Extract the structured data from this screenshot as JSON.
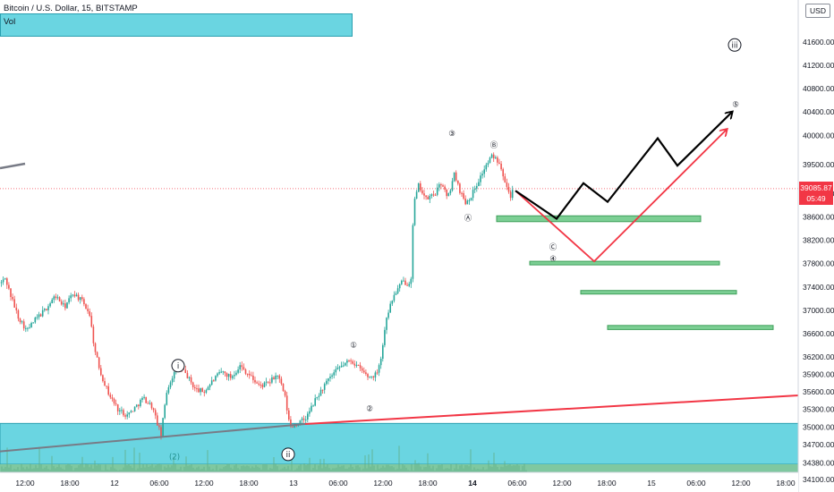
{
  "header": {
    "title": "Bitcoin / U.S. Dollar, 15, BITSTAMP",
    "vol_label": "Vol",
    "currency": "USD"
  },
  "price_tag": {
    "price": "39085.87",
    "countdown": "05:49"
  },
  "colors": {
    "candle_up": "#26a69a",
    "candle_down": "#ef5350",
    "zone": "#6ad5e1",
    "volume_area": "#7fc8a0",
    "target_box": "#7ccf94",
    "red_projection": "#f23645",
    "black_projection": "#000000",
    "support_line_gray": "#787b86"
  },
  "chart_data": {
    "type": "candlestick",
    "symbol": "Bitcoin / U.S. Dollar",
    "interval": "15",
    "exchange": "BITSTAMP",
    "y_axis": {
      "ticks": [
        41600,
        41200,
        40800,
        40400,
        40000,
        39500,
        39000,
        38600,
        38200,
        37800,
        37400,
        37000,
        36600,
        36200,
        35900,
        35600,
        35300,
        35000,
        34700,
        34380,
        34100
      ],
      "ylim": [
        33950,
        41800
      ]
    },
    "x_axis": {
      "ticks": [
        "12:00",
        "18:00",
        "12",
        "06:00",
        "12:00",
        "18:00",
        "13",
        "06:00",
        "12:00",
        "18:00",
        "14",
        "06:00",
        "12:00",
        "18:00",
        "15",
        "06:00",
        "12:00",
        "18:00"
      ],
      "bold_ticks": [
        "14"
      ]
    },
    "last_price": 39085.87,
    "price_path": [
      [
        0,
        37450
      ],
      [
        6,
        37550
      ],
      [
        12,
        37250
      ],
      [
        20,
        36900
      ],
      [
        30,
        36650
      ],
      [
        40,
        36850
      ],
      [
        50,
        37000
      ],
      [
        62,
        37250
      ],
      [
        72,
        37050
      ],
      [
        82,
        37300
      ],
      [
        92,
        37150
      ],
      [
        100,
        36950
      ],
      [
        106,
        36300
      ],
      [
        113,
        35900
      ],
      [
        122,
        35550
      ],
      [
        132,
        35300
      ],
      [
        142,
        35200
      ],
      [
        152,
        35350
      ],
      [
        160,
        35500
      ],
      [
        170,
        35350
      ],
      [
        180,
        34850
      ],
      [
        186,
        35600
      ],
      [
        192,
        35850
      ],
      [
        200,
        36050
      ],
      [
        208,
        35900
      ],
      [
        218,
        35650
      ],
      [
        228,
        35600
      ],
      [
        238,
        35800
      ],
      [
        248,
        35950
      ],
      [
        258,
        35850
      ],
      [
        268,
        36050
      ],
      [
        278,
        35900
      ],
      [
        290,
        35700
      ],
      [
        300,
        35750
      ],
      [
        310,
        35900
      ],
      [
        318,
        35550
      ],
      [
        324,
        35000
      ],
      [
        332,
        35050
      ],
      [
        342,
        35150
      ],
      [
        352,
        35450
      ],
      [
        362,
        35700
      ],
      [
        372,
        35900
      ],
      [
        382,
        36050
      ],
      [
        392,
        36150
      ],
      [
        402,
        36000
      ],
      [
        412,
        35850
      ],
      [
        420,
        35900
      ],
      [
        426,
        36200
      ],
      [
        432,
        36900
      ],
      [
        440,
        37250
      ],
      [
        450,
        37500
      ],
      [
        456,
        37450
      ],
      [
        460,
        37600
      ],
      [
        462,
        38800
      ],
      [
        468,
        39150
      ],
      [
        476,
        38900
      ],
      [
        486,
        39000
      ],
      [
        494,
        39200
      ],
      [
        500,
        38900
      ],
      [
        508,
        39350
      ],
      [
        514,
        39050
      ],
      [
        520,
        38850
      ],
      [
        526,
        38950
      ],
      [
        534,
        39200
      ],
      [
        542,
        39450
      ],
      [
        550,
        39650
      ],
      [
        558,
        39550
      ],
      [
        564,
        39250
      ],
      [
        570,
        38950
      ],
      [
        574,
        39085
      ]
    ],
    "support_zone": {
      "from": 34360,
      "to": 35060
    },
    "volume_band": {
      "from": 34100,
      "to": 34360
    },
    "target_boxes": [
      {
        "from": 38620,
        "to": 38520
      },
      {
        "from": 37840,
        "to": 37790
      },
      {
        "from": 37340,
        "to": 37290
      },
      {
        "from": 36740,
        "to": 36670
      }
    ],
    "trendlines": [
      {
        "name": "red-trendline",
        "p1": [
          341,
          35050
        ],
        "p2": [
          892,
          35540
        ]
      },
      {
        "name": "gray-trendline",
        "p1": [
          0,
          34580
        ],
        "p2": [
          341,
          35050
        ]
      }
    ],
    "projections": [
      {
        "name": "red-projection",
        "points": [
          [
            576,
            39050
          ],
          [
            664,
            37840
          ],
          [
            812,
            40100
          ]
        ]
      },
      {
        "name": "black-projection",
        "points": [
          [
            576,
            39050
          ],
          [
            622,
            38570
          ],
          [
            652,
            39180
          ],
          [
            679,
            38860
          ],
          [
            735,
            39950
          ],
          [
            757,
            39480
          ],
          [
            818,
            40400
          ]
        ]
      }
    ],
    "wave_labels": [
      {
        "text": "ⓘ",
        "x": 199,
        "y": 36050
      },
      {
        "text": "ⓘⓘ",
        "x": 322,
        "y": 34530
      },
      {
        "text": "ⓘⓘⓘ",
        "x": 821,
        "y": 41550
      },
      {
        "text": "①",
        "x": 395,
        "y": 36420
      },
      {
        "text": "②",
        "x": 413,
        "y": 35330
      },
      {
        "text": "③",
        "x": 505,
        "y": 40050
      },
      {
        "text": "④",
        "x": 618,
        "y": 37900
      },
      {
        "text": "⑤",
        "x": 822,
        "y": 40550
      },
      {
        "text": "Ⓐ",
        "x": 523,
        "y": 38600
      },
      {
        "text": "Ⓑ",
        "x": 552,
        "y": 39850
      },
      {
        "text": "Ⓒ",
        "x": 618,
        "y": 38100
      },
      {
        "text": "(2)",
        "x": 195,
        "y": 34490
      }
    ]
  }
}
